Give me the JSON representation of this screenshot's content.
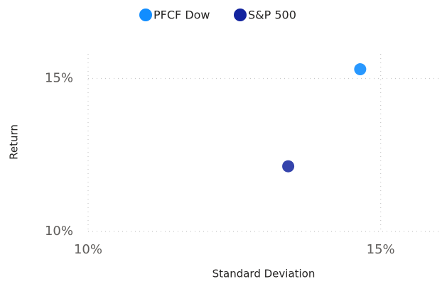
{
  "chart_data": {
    "type": "scatter",
    "x_label": "Standard Deviation",
    "y_label": "Return",
    "series": [
      {
        "name": "PFCF Dow",
        "color": "#118dff",
        "x": [
          14.65
        ],
        "values": [
          15.3
        ]
      },
      {
        "name": "S&P 500",
        "color": "#12239e",
        "x": [
          13.42
        ],
        "values": [
          12.13
        ]
      }
    ],
    "xlim": [
      10,
      16
    ],
    "xticks": [
      {
        "value": 10,
        "label": "10%"
      },
      {
        "value": 15,
        "label": "15%"
      }
    ],
    "ylim": [
      10,
      15.8
    ],
    "yticks": [
      {
        "value": 10,
        "label": "10%"
      },
      {
        "value": 15,
        "label": "15%"
      }
    ],
    "grid": true,
    "legend": "top"
  }
}
